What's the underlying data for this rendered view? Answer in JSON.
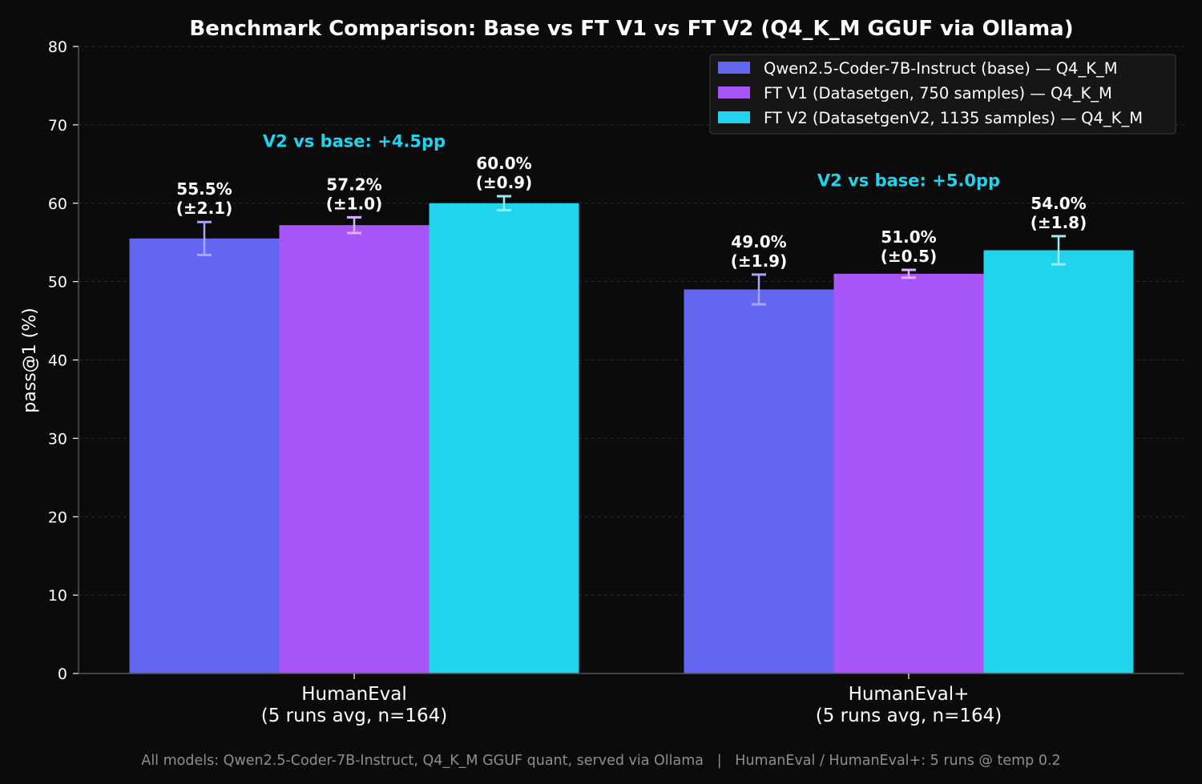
{
  "chart_data": {
    "type": "bar",
    "title": "Benchmark Comparison: Base vs FT V1 vs FT V2 (Q4_K_M GGUF via Ollama)",
    "xlabel": "",
    "ylabel": "pass@1 (%)",
    "ylim": [
      0,
      80
    ],
    "yticks": [
      0,
      10,
      20,
      30,
      40,
      50,
      60,
      70,
      80
    ],
    "grid": "horizontal dashed",
    "legend_position": "top-right",
    "categories": [
      [
        "HumanEval",
        "(5 runs avg, n=164)"
      ],
      [
        "HumanEval+",
        "(5 runs avg, n=164)"
      ]
    ],
    "series": [
      {
        "name": "Qwen2.5-Coder-7B-Instruct (base) — Q4_K_M",
        "color": "#6366f1",
        "err_color": "#a5a8f7",
        "values": [
          55.5,
          49.0
        ],
        "errors": [
          2.1,
          1.9
        ],
        "value_labels": [
          "55.5%",
          "49.0%"
        ],
        "error_labels": [
          "(±2.1)",
          "(±1.9)"
        ]
      },
      {
        "name": "FT V1 (Datasetgen, 750 samples) — Q4_K_M",
        "color": "#a855f7",
        "err_color": "#d8b4fe",
        "values": [
          57.2,
          51.0
        ],
        "errors": [
          1.0,
          0.5
        ],
        "value_labels": [
          "57.2%",
          "51.0%"
        ],
        "error_labels": [
          "(±1.0)",
          "(±0.5)"
        ]
      },
      {
        "name": "FT V2 (DatasetgenV2, 1135 samples) — Q4_K_M",
        "color": "#22d3ee",
        "err_color": "#9beaf6",
        "values": [
          60.0,
          54.0
        ],
        "errors": [
          0.9,
          1.8
        ],
        "value_labels": [
          "60.0%",
          "54.0%"
        ],
        "error_labels": [
          "(±0.9)",
          "(±1.8)"
        ]
      }
    ],
    "annotations": [
      {
        "text": "V2 vs base: +4.5pp",
        "category_index": 0,
        "y": 68,
        "color": "#22d3ee"
      },
      {
        "text": "V2 vs base: +5.0pp",
        "category_index": 1,
        "y": 63,
        "color": "#22d3ee"
      }
    ]
  },
  "footer": "All models: Qwen2.5-Coder-7B-Instruct, Q4_K_M GGUF quant, served via Ollama   |   HumanEval / HumanEval+: 5 runs @ temp 0.2",
  "colors": {
    "background": "#0b0b0b",
    "text": "#ffffff",
    "footer_text": "#8e8e8e",
    "grid": "#2a2a2a",
    "legend_bg": "#161616",
    "legend_border": "#3a3a3a"
  }
}
